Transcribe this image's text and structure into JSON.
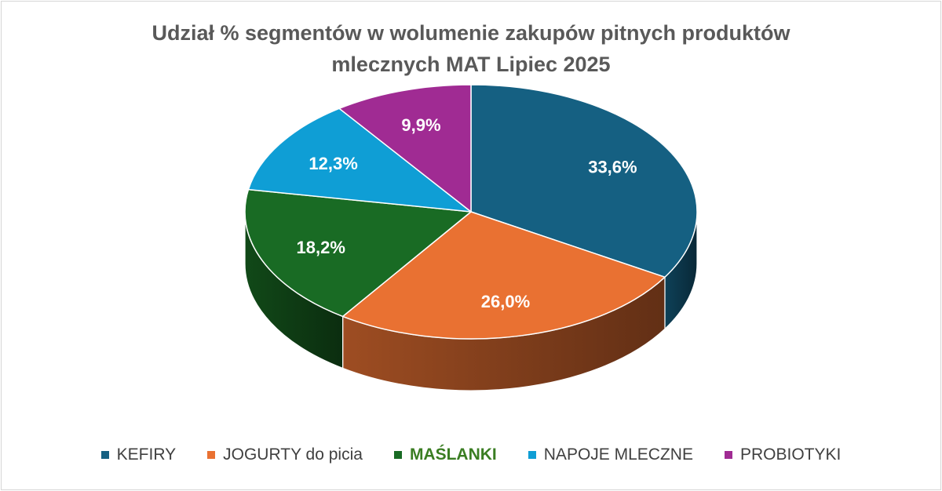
{
  "chart_data": {
    "type": "pie",
    "title_lines": [
      "Udział % segmentów w wolumenie zakupów pitnych produktów",
      "mlecznych MAT Lipiec 2025"
    ],
    "unit": "%",
    "slices": [
      {
        "name": "KEFIRY",
        "value": 33.6,
        "label": "33,6%",
        "color": "#156082"
      },
      {
        "name": "JOGURTY do picia",
        "value": 26.0,
        "label": "26,0%",
        "color": "#E97132"
      },
      {
        "name": "MAŚLANKI",
        "value": 18.2,
        "label": "18,2%",
        "color": "#196B24"
      },
      {
        "name": "NAPOJE MLECZNE",
        "value": 12.3,
        "label": "12,3%",
        "color": "#0F9ED5"
      },
      {
        "name": "PROBIOTYKI",
        "value": 9.9,
        "label": "9,9%",
        "color": "#A02B93"
      }
    ],
    "legend_position": "bottom",
    "legend_highlight": "MAŚLANKI",
    "legend_highlight_color": "#3A7D22",
    "style": "3d-pie"
  }
}
